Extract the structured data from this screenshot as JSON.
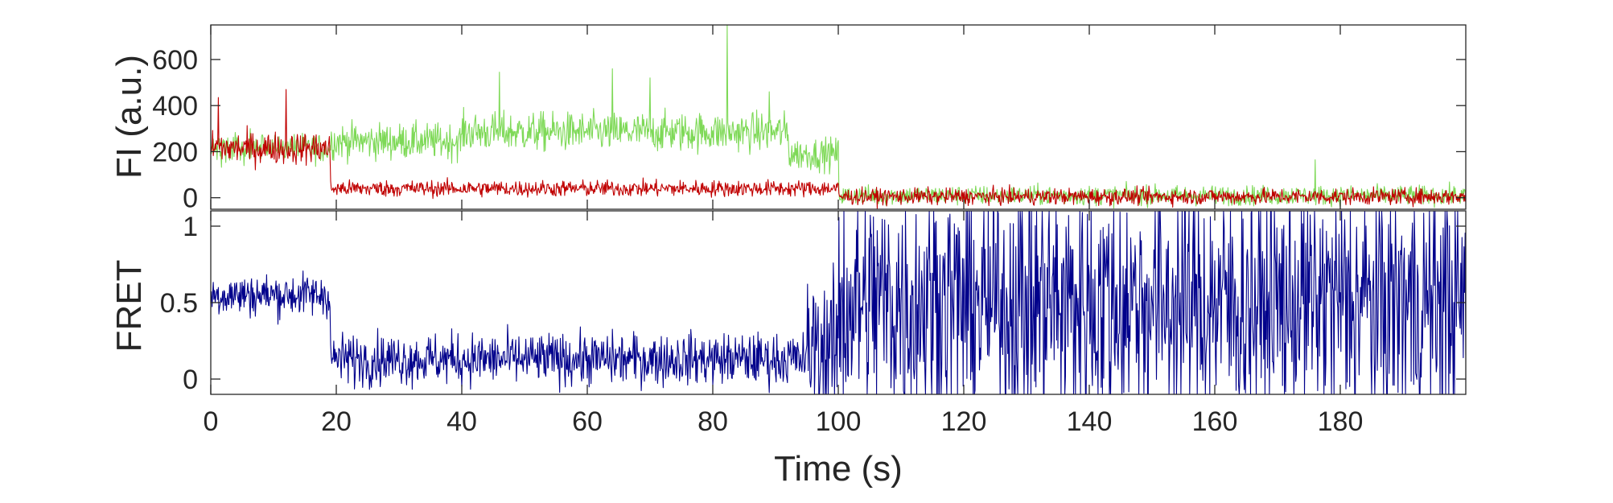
{
  "chart_data": [
    {
      "type": "line",
      "ylabel": "FI (a.u.)",
      "xlabel": "",
      "xlim": [
        0,
        200
      ],
      "ylim": [
        -50,
        750
      ],
      "xticks": [
        0,
        20,
        40,
        60,
        80,
        100,
        120,
        140,
        160,
        180
      ],
      "yticks": [
        0,
        200,
        400,
        600
      ],
      "grid": false,
      "legend": "none",
      "series": [
        {
          "color": "#7ed957",
          "segments": [
            {
              "x_from": 0,
              "x_to": 19,
              "mean": 215,
              "noise": 45
            },
            {
              "x_from": 19,
              "x_to": 40,
              "mean": 245,
              "noise": 55
            },
            {
              "x_from": 40,
              "x_to": 92,
              "mean": 285,
              "noise": 60
            },
            {
              "x_from": 92,
              "x_to": 100,
              "mean": 190,
              "noise": 50
            },
            {
              "x_from": 100,
              "x_to": 200,
              "mean": 10,
              "noise": 30
            }
          ],
          "spikes": [
            {
              "x": 46,
              "y": 545
            },
            {
              "x": 64,
              "y": 560
            },
            {
              "x": 70,
              "y": 520
            },
            {
              "x": 82.3,
              "y": 750
            },
            {
              "x": 89,
              "y": 460
            },
            {
              "x": 176,
              "y": 165
            }
          ]
        },
        {
          "color": "#c00000",
          "segments": [
            {
              "x_from": 0,
              "x_to": 19,
              "mean": 215,
              "noise": 50
            },
            {
              "x_from": 19,
              "x_to": 100,
              "mean": 40,
              "noise": 25
            },
            {
              "x_from": 100,
              "x_to": 200,
              "mean": 5,
              "noise": 25
            }
          ],
          "spikes": [
            {
              "x": 1.2,
              "y": 435
            },
            {
              "x": 12,
              "y": 470
            }
          ]
        }
      ]
    },
    {
      "type": "line",
      "ylabel": "FRET",
      "xlabel": "Time (s)",
      "xlim": [
        0,
        200
      ],
      "ylim": [
        -0.1,
        1.1
      ],
      "xticks": [
        0,
        20,
        40,
        60,
        80,
        100,
        120,
        140,
        160,
        180
      ],
      "yticks": [
        0,
        0.5,
        1
      ],
      "grid": false,
      "legend": "none",
      "series": [
        {
          "color": "#00008b",
          "segments": [
            {
              "x_from": 0,
              "x_to": 19,
              "mean": 0.55,
              "noise": 0.1
            },
            {
              "x_from": 19,
              "x_to": 95,
              "mean": 0.13,
              "noise": 0.12
            },
            {
              "x_from": 95,
              "x_to": 100,
              "mean": 0.2,
              "noise": 0.35
            },
            {
              "x_from": 100,
              "x_to": 200,
              "mean": 0.5,
              "noise": 0.6
            }
          ]
        }
      ]
    }
  ]
}
